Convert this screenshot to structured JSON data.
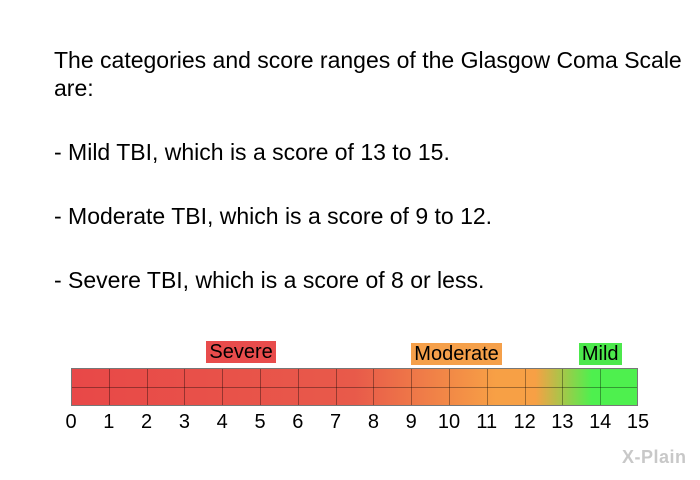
{
  "intro": "The categories and score ranges of the Glasgow Coma Scale are:",
  "bullets": [
    "- Mild TBI, which is a score of 13 to 15.",
    "- Moderate TBI, which is a score of 9 to 12.",
    "- Severe TBI, which is a score of 8 or less."
  ],
  "scale": {
    "min": 0,
    "max": 15,
    "ticks": [
      "0",
      "1",
      "2",
      "3",
      "4",
      "5",
      "6",
      "7",
      "8",
      "9",
      "10",
      "11",
      "12",
      "13",
      "14",
      "15"
    ],
    "categories": [
      {
        "label": "Severe",
        "center_score": 4.5,
        "color": "#e84c4c"
      },
      {
        "label": "Moderate",
        "center_score": 10.2,
        "color": "#f5a04a"
      },
      {
        "label": "Mild",
        "center_score": 14.0,
        "color": "#4ce84c"
      }
    ],
    "gradient_colors": [
      "#e84848",
      "#e85a4a",
      "#f7a045",
      "#4ef04e"
    ]
  },
  "logo_text": "X-Plain"
}
